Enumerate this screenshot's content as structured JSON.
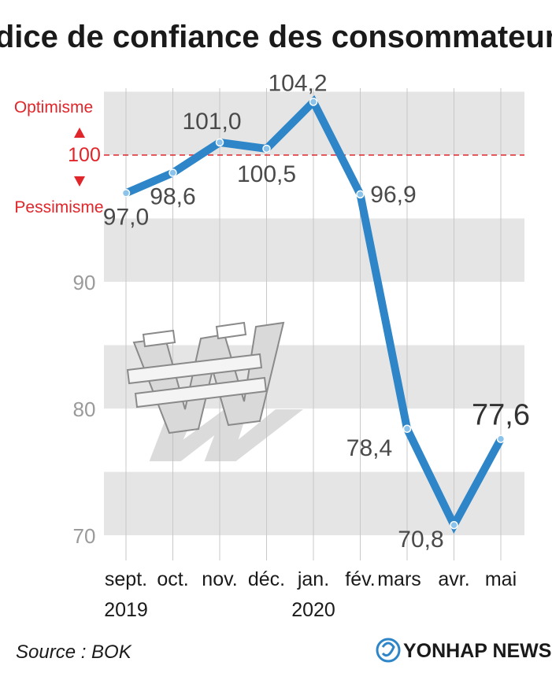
{
  "title": "Indice de confiance des consommateurs",
  "annotations": {
    "optimism": "Optimisme",
    "pessimism": "Pessimisme",
    "threshold_label": "100"
  },
  "source": "Source : BOK",
  "logo": "YONHAP NEWS",
  "colors": {
    "line": "#2e86c8",
    "band": "#e5e5e5",
    "threshold": "#e0262b",
    "marker": "#8cc3ea"
  },
  "chart_data": {
    "type": "line",
    "title": "Indice de confiance des consommateurs",
    "categories": [
      "sept.",
      "oct.",
      "nov.",
      "déc.",
      "jan.",
      "fév.",
      "mars",
      "avr.",
      "mai"
    ],
    "year_labels": [
      {
        "label": "2019",
        "category": "sept."
      },
      {
        "label": "2020",
        "category": "jan."
      }
    ],
    "series": [
      {
        "values": [
          97.0,
          98.6,
          101.0,
          100.5,
          104.2,
          96.9,
          78.4,
          70.8,
          77.6
        ]
      }
    ],
    "data_labels": [
      "97,0",
      "98,6",
      "101,0",
      "100,5",
      "104,2",
      "96,9",
      "78,4",
      "70,8",
      "77,6"
    ],
    "y_ticks": [
      70,
      80,
      90,
      100
    ],
    "ylim": [
      70,
      105
    ],
    "reference_line": 100,
    "grid": "alternating horizontal bands"
  }
}
